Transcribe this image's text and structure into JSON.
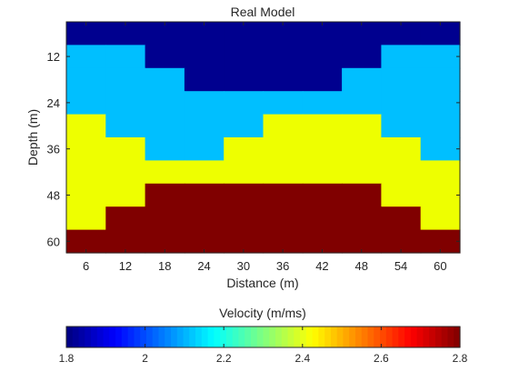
{
  "chart_data": {
    "type": "heatmap",
    "title": "Real Model",
    "xlabel": "Distance (m)",
    "ylabel": "Depth (m)",
    "x_ticks": [
      6,
      12,
      18,
      24,
      30,
      36,
      42,
      48,
      54,
      60
    ],
    "y_ticks": [
      12,
      24,
      36,
      48,
      60
    ],
    "xlim": [
      3,
      63
    ],
    "ylim": [
      63,
      3
    ],
    "x": [
      6,
      12,
      18,
      24,
      30,
      36,
      42,
      48,
      54,
      60
    ],
    "y": [
      6,
      12,
      18,
      24,
      30,
      36,
      42,
      48,
      54,
      60
    ],
    "values": [
      [
        1.8,
        1.8,
        1.8,
        1.8,
        1.8,
        1.8,
        1.8,
        1.8,
        1.8,
        1.8
      ],
      [
        2.2,
        2.2,
        1.8,
        1.8,
        1.8,
        1.8,
        1.8,
        1.8,
        2.2,
        2.2
      ],
      [
        2.2,
        2.2,
        2.2,
        1.8,
        1.8,
        1.8,
        1.8,
        2.2,
        2.2,
        2.2
      ],
      [
        2.2,
        2.2,
        2.2,
        2.2,
        2.2,
        2.2,
        2.2,
        2.2,
        2.2,
        2.2
      ],
      [
        2.5,
        2.2,
        2.2,
        2.2,
        2.2,
        2.5,
        2.5,
        2.5,
        2.2,
        2.2
      ],
      [
        2.5,
        2.5,
        2.2,
        2.2,
        2.5,
        2.5,
        2.5,
        2.5,
        2.5,
        2.2
      ],
      [
        2.5,
        2.5,
        2.5,
        2.5,
        2.5,
        2.5,
        2.5,
        2.5,
        2.5,
        2.5
      ],
      [
        2.5,
        2.5,
        2.8,
        2.8,
        2.8,
        2.8,
        2.8,
        2.8,
        2.5,
        2.5
      ],
      [
        2.5,
        2.8,
        2.8,
        2.8,
        2.8,
        2.8,
        2.8,
        2.8,
        2.8,
        2.5
      ],
      [
        2.8,
        2.8,
        2.8,
        2.8,
        2.8,
        2.8,
        2.8,
        2.8,
        2.8,
        2.8
      ]
    ],
    "colors": {
      "1.8": "#00008f",
      "2.2": "#00bfff",
      "2.5": "#eeff00",
      "2.8": "#800000"
    },
    "colormap": "jet",
    "colorbar": {
      "label": "Velocity (m/ms)",
      "orientation": "horizontal",
      "placement": "bottom",
      "clim": [
        1.8,
        2.8
      ],
      "ticks": [
        "1.8",
        "2",
        "2.2",
        "2.4",
        "2.6",
        "2.8"
      ]
    },
    "grid": false
  }
}
